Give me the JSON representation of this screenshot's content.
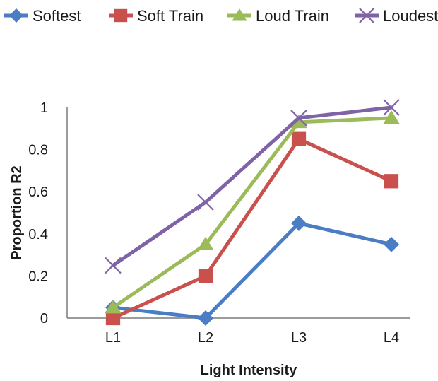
{
  "chart_data": {
    "type": "line",
    "xlabel": "Light Intensity",
    "ylabel": "Proportion  R2",
    "categories": [
      "L1",
      "L2",
      "L3",
      "L4"
    ],
    "ylim": [
      0,
      1
    ],
    "yticks": [
      {
        "value": 0,
        "label": "0"
      },
      {
        "value": 0.2,
        "label": "0.2"
      },
      {
        "value": 0.4,
        "label": "0.4"
      },
      {
        "value": 0.6,
        "label": "0.6"
      },
      {
        "value": 0.8,
        "label": "0.8"
      },
      {
        "value": 1,
        "label": "1"
      }
    ],
    "grid": false,
    "legend_position": "top",
    "series": [
      {
        "name": "Softest",
        "color": "#4a7dc4",
        "marker": "diamond",
        "values": [
          0.05,
          0.0,
          0.45,
          0.35
        ]
      },
      {
        "name": "Soft Train",
        "color": "#c9504c",
        "marker": "square",
        "values": [
          0.0,
          0.2,
          0.85,
          0.65
        ]
      },
      {
        "name": "Loud Train",
        "color": "#9bbb59",
        "marker": "triangle",
        "values": [
          0.05,
          0.35,
          0.93,
          0.95
        ]
      },
      {
        "name": "Loudest",
        "color": "#7f63a6",
        "marker": "x",
        "values": [
          0.25,
          0.55,
          0.95,
          1.0
        ]
      }
    ]
  }
}
